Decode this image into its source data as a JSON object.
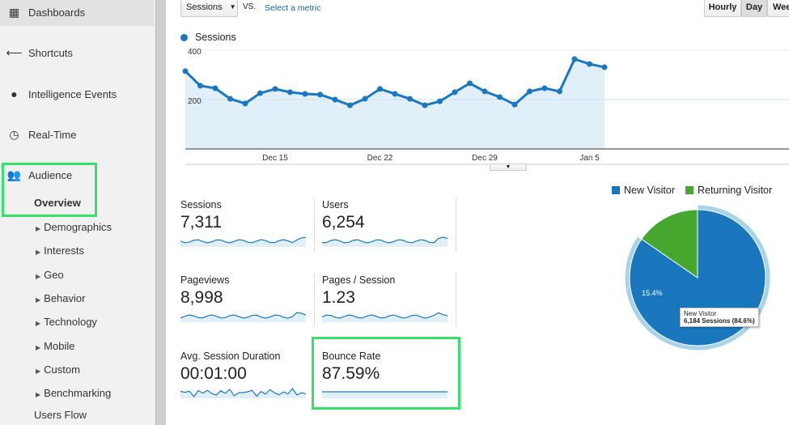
{
  "sidebar": {
    "items": [
      {
        "label": "Dashboards",
        "icon": "grid-icon"
      },
      {
        "label": "Shortcuts",
        "icon": "arrow-left-icon"
      },
      {
        "label": "Intelligence Events",
        "icon": "lightbulb-icon"
      },
      {
        "label": "Real-Time",
        "icon": "clock-icon"
      },
      {
        "label": "Audience",
        "icon": "people-icon"
      }
    ],
    "overview": "Overview",
    "subitems": [
      "Demographics",
      "Interests",
      "Geo",
      "Behavior",
      "Technology",
      "Mobile",
      "Custom",
      "Benchmarking"
    ],
    "users_flow": "Users Flow"
  },
  "toolbar": {
    "metric": "Sessions",
    "vs": "VS.",
    "select_metric": "Select a metric",
    "hourly": "Hourly",
    "day": "Day",
    "week": "Wee"
  },
  "chart_data": {
    "type": "area",
    "legend": "Sessions",
    "series": [
      {
        "name": "Sessions",
        "values": [
          315,
          256,
          246,
          203,
          184,
          226,
          243,
          230,
          223,
          220,
          200,
          177,
          203,
          243,
          223,
          203,
          177,
          193,
          230,
          266,
          233,
          210,
          180,
          233,
          246,
          233,
          364,
          344,
          331
        ]
      }
    ],
    "x": [
      "Dec 9",
      "Dec 10",
      "Dec 11",
      "Dec 12",
      "Dec 13",
      "Dec 14",
      "Dec 15",
      "Dec 16",
      "Dec 17",
      "Dec 18",
      "Dec 19",
      "Dec 20",
      "Dec 21",
      "Dec 22",
      "Dec 23",
      "Dec 24",
      "Dec 25",
      "Dec 26",
      "Dec 27",
      "Dec 28",
      "Dec 29",
      "Dec 30",
      "Dec 31",
      "Jan 1",
      "Jan 2",
      "Jan 3",
      "Jan 4",
      "Jan 5",
      "Jan 6"
    ],
    "xticks": [
      "Dec 15",
      "Dec 22",
      "Dec 29",
      "Jan 5"
    ],
    "yticks": [
      "400",
      "200"
    ],
    "ylim": [
      0,
      400
    ],
    "color": "#1a77c1",
    "fill": "#e1f0f8"
  },
  "metrics": [
    {
      "label": "Sessions",
      "value": "7,311"
    },
    {
      "label": "Users",
      "value": "6,254"
    },
    {
      "label": "Pageviews",
      "value": "8,998"
    },
    {
      "label": "Pages / Session",
      "value": "1.23"
    },
    {
      "label": "Avg. Session Duration",
      "value": "00:01:00"
    },
    {
      "label": "Bounce Rate",
      "value": "87.59%"
    }
  ],
  "pie": {
    "legend": [
      {
        "label": "New Visitor",
        "color": "#1a77bd"
      },
      {
        "label": "Returning Visitor",
        "color": "#45a72d"
      }
    ],
    "slices": [
      {
        "label": "New Visitor",
        "percent": 84.6
      },
      {
        "label": "Returning Visitor",
        "percent": 15.4
      }
    ],
    "returning_label": "15.4%",
    "tooltip_title": "New Visitor",
    "tooltip_value": "6,184 Sessions (84.6%)"
  }
}
